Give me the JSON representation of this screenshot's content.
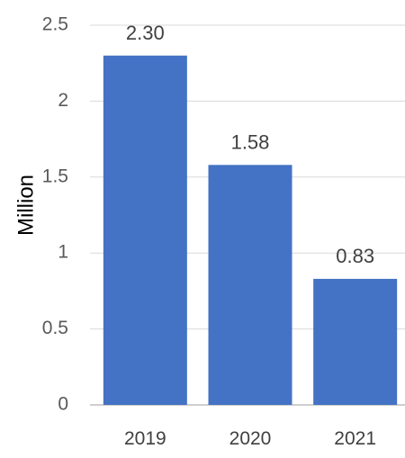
{
  "chart_data": {
    "type": "bar",
    "categories": [
      "2019",
      "2020",
      "2021"
    ],
    "values": [
      2.3,
      1.58,
      0.83
    ],
    "data_labels": [
      "2.30",
      "1.58",
      "0.83"
    ],
    "ylabel": "Million",
    "xlabel": "",
    "ylim": [
      0,
      2.5
    ],
    "yticks": [
      "0",
      "0.5",
      "1",
      "1.5",
      "2",
      "2.5"
    ],
    "grid": true,
    "legend": "none",
    "bar_color": "#4472C4"
  }
}
